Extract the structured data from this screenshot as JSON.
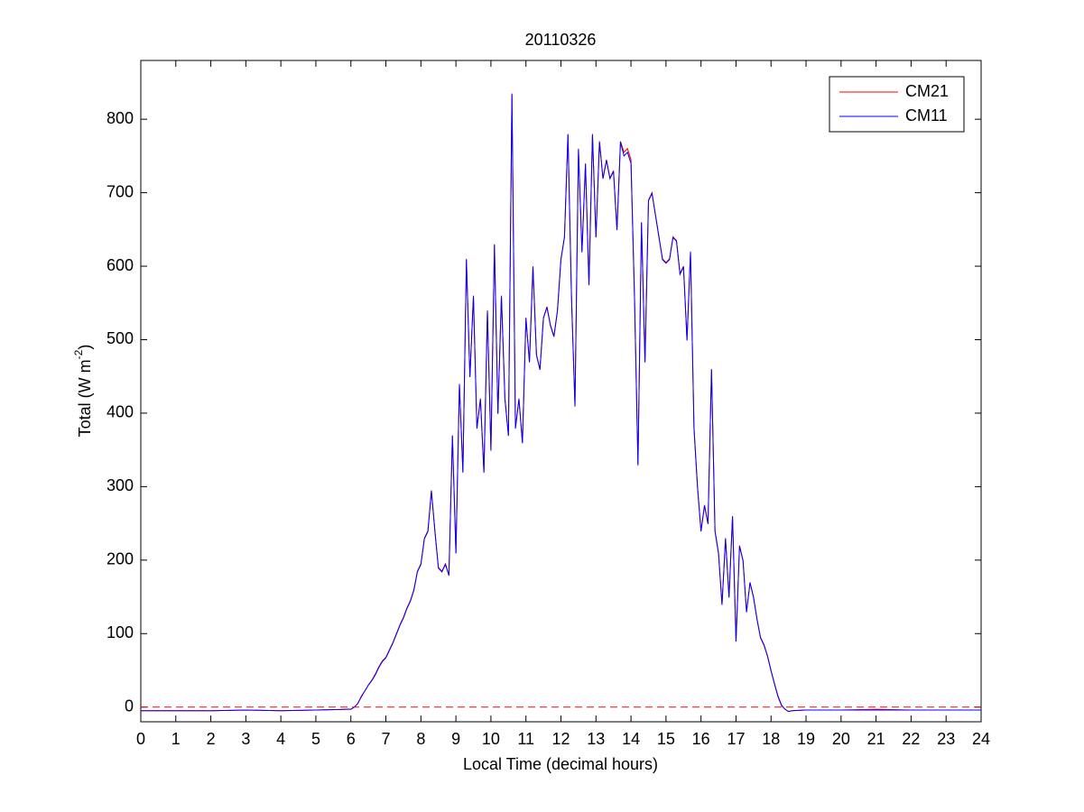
{
  "chart_data": {
    "type": "line",
    "title": "20110326",
    "xlabel": "Local Time (decimal hours)",
    "ylabel": {
      "text": "Total (W m",
      "superscript": "-2",
      "suffix": ")"
    },
    "xlim": [
      0,
      24
    ],
    "xticks": [
      0,
      1,
      2,
      3,
      4,
      5,
      6,
      7,
      8,
      9,
      10,
      11,
      12,
      13,
      14,
      15,
      16,
      17,
      18,
      19,
      20,
      21,
      22,
      23,
      24
    ],
    "ylim": [
      -20,
      880
    ],
    "yticks": [
      0,
      100,
      200,
      300,
      400,
      500,
      600,
      700,
      800
    ],
    "grid": false,
    "legend": "upper right",
    "hline": {
      "value": 0,
      "color": "#ff0000",
      "dashed": true
    },
    "x": [
      0,
      1,
      2,
      3,
      4,
      5,
      5.9,
      6.0,
      6.1,
      6.2,
      6.3,
      6.4,
      6.5,
      6.6,
      6.7,
      6.8,
      6.9,
      7.0,
      7.1,
      7.2,
      7.3,
      7.4,
      7.5,
      7.6,
      7.7,
      7.8,
      7.9,
      8.0,
      8.1,
      8.2,
      8.3,
      8.4,
      8.5,
      8.6,
      8.7,
      8.8,
      8.9,
      9.0,
      9.1,
      9.2,
      9.3,
      9.4,
      9.5,
      9.6,
      9.7,
      9.8,
      9.9,
      10.0,
      10.1,
      10.2,
      10.3,
      10.4,
      10.5,
      10.6,
      10.7,
      10.8,
      10.9,
      11.0,
      11.1,
      11.2,
      11.3,
      11.4,
      11.5,
      11.6,
      11.7,
      11.8,
      11.9,
      12.0,
      12.1,
      12.2,
      12.3,
      12.4,
      12.5,
      12.6,
      12.7,
      12.8,
      12.9,
      13.0,
      13.1,
      13.2,
      13.3,
      13.4,
      13.5,
      13.6,
      13.7,
      13.8,
      13.9,
      14.0,
      14.1,
      14.2,
      14.3,
      14.4,
      14.5,
      14.6,
      14.7,
      14.8,
      14.9,
      15.0,
      15.1,
      15.2,
      15.3,
      15.4,
      15.5,
      15.6,
      15.7,
      15.8,
      15.9,
      16.0,
      16.1,
      16.2,
      16.3,
      16.4,
      16.5,
      16.6,
      16.7,
      16.8,
      16.9,
      17.0,
      17.1,
      17.2,
      17.3,
      17.4,
      17.5,
      17.6,
      17.7,
      17.8,
      17.9,
      18.0,
      18.1,
      18.2,
      18.3,
      18.4,
      18.5,
      18.6,
      19,
      20,
      21,
      22,
      23,
      24
    ],
    "series": [
      {
        "name": "CM21",
        "color": "#ff0000",
        "values": [
          -5,
          -5,
          -5,
          -4,
          -5,
          -4,
          -3,
          -3,
          0,
          5,
          15,
          22,
          30,
          37,
          45,
          55,
          63,
          68,
          78,
          88,
          100,
          112,
          122,
          135,
          145,
          160,
          185,
          195,
          230,
          240,
          295,
          240,
          190,
          185,
          195,
          180,
          370,
          210,
          440,
          320,
          610,
          450,
          560,
          380,
          420,
          320,
          540,
          350,
          630,
          400,
          560,
          420,
          370,
          835,
          380,
          420,
          360,
          530,
          470,
          600,
          480,
          460,
          530,
          545,
          520,
          505,
          540,
          610,
          640,
          780,
          560,
          410,
          760,
          620,
          740,
          575,
          780,
          640,
          770,
          720,
          745,
          720,
          730,
          650,
          770,
          755,
          760,
          745,
          560,
          330,
          660,
          470,
          690,
          700,
          670,
          640,
          610,
          605,
          610,
          640,
          635,
          590,
          600,
          500,
          620,
          380,
          300,
          240,
          275,
          250,
          460,
          240,
          210,
          140,
          230,
          150,
          260,
          90,
          220,
          200,
          130,
          170,
          150,
          120,
          95,
          85,
          70,
          50,
          32,
          15,
          3,
          -3,
          -6,
          -5,
          -4,
          -4,
          -3,
          -4,
          -4,
          -4
        ]
      },
      {
        "name": "CM11",
        "color": "#0000ff",
        "values": [
          -5,
          -5,
          -5,
          -4,
          -5,
          -4,
          -3,
          -3,
          0,
          5,
          14,
          22,
          30,
          36,
          44,
          54,
          62,
          67,
          77,
          87,
          99,
          111,
          121,
          134,
          144,
          159,
          184,
          194,
          229,
          239,
          294,
          239,
          189,
          184,
          194,
          179,
          369,
          209,
          439,
          319,
          609,
          449,
          559,
          379,
          419,
          319,
          539,
          349,
          629,
          399,
          559,
          419,
          369,
          834,
          379,
          419,
          359,
          529,
          469,
          599,
          479,
          459,
          529,
          544,
          519,
          504,
          539,
          609,
          639,
          779,
          559,
          409,
          759,
          619,
          739,
          574,
          779,
          639,
          769,
          719,
          744,
          719,
          729,
          649,
          769,
          750,
          755,
          740,
          559,
          329,
          659,
          469,
          689,
          699,
          669,
          639,
          609,
          604,
          609,
          639,
          634,
          589,
          599,
          499,
          619,
          379,
          299,
          239,
          274,
          249,
          459,
          239,
          209,
          139,
          229,
          149,
          259,
          89,
          219,
          199,
          129,
          169,
          149,
          119,
          94,
          84,
          69,
          49,
          31,
          14,
          2,
          -3,
          -6,
          -5,
          -4,
          -4,
          -4,
          -4,
          -4,
          -4
        ]
      }
    ]
  }
}
